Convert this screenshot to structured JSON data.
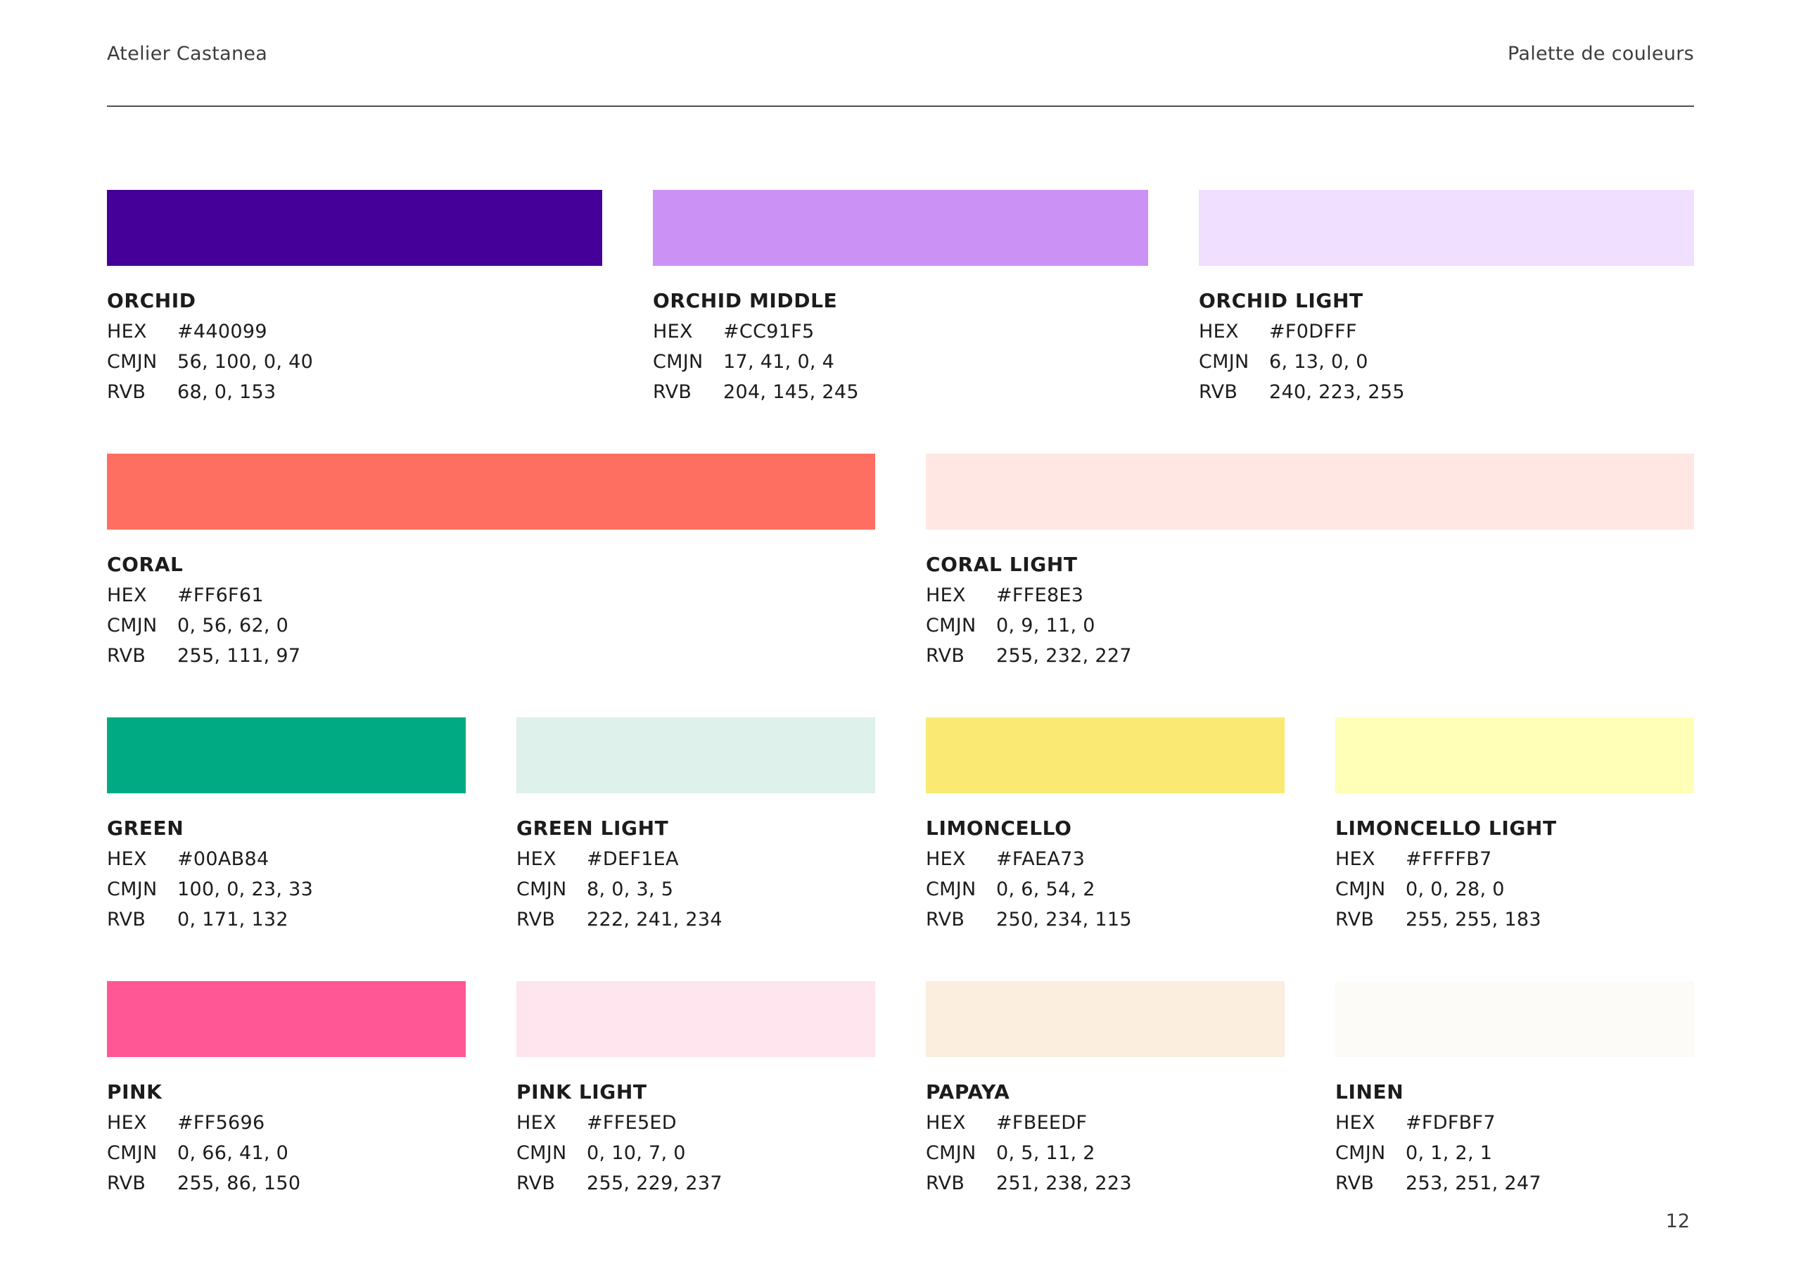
{
  "header": {
    "brand": "Atelier Castanea",
    "title": "Palette de couleurs"
  },
  "labels": {
    "hex": "HEX",
    "cmjn": "CMJN",
    "rvb": "RVB"
  },
  "rows": [
    {
      "swatches": [
        {
          "name": "ORCHID",
          "hex": "#440099",
          "cmjn": "56, 100, 0, 40",
          "rvb": "68, 0, 153"
        },
        {
          "name": "ORCHID MIDDLE",
          "hex": "#CC91F5",
          "cmjn": "17, 41, 0, 4",
          "rvb": "204, 145, 245"
        },
        {
          "name": "ORCHID LIGHT",
          "hex": "#F0DFFF",
          "cmjn": "6, 13, 0, 0",
          "rvb": "240, 223, 255"
        }
      ]
    },
    {
      "swatches": [
        {
          "name": "CORAL",
          "hex": "#FF6F61",
          "cmjn": "0, 56, 62, 0",
          "rvb": "255, 111, 97"
        },
        {
          "name": "CORAL LIGHT",
          "hex": "#FFE8E3",
          "cmjn": "0, 9, 11, 0",
          "rvb": "255, 232, 227"
        }
      ]
    },
    {
      "swatches": [
        {
          "name": "GREEN",
          "hex": "#00AB84",
          "cmjn": "100, 0, 23, 33",
          "rvb": "0, 171, 132"
        },
        {
          "name": "GREEN LIGHT",
          "hex": "#DEF1EA",
          "cmjn": "8, 0, 3, 5",
          "rvb": "222, 241, 234"
        },
        {
          "name": "LIMONCELLO",
          "hex": "#FAEA73",
          "cmjn": "0, 6, 54, 2",
          "rvb": "250, 234, 115"
        },
        {
          "name": "LIMONCELLO LIGHT",
          "hex": "#FFFFB7",
          "cmjn": "0, 0, 28, 0",
          "rvb": "255, 255, 183"
        }
      ]
    },
    {
      "swatches": [
        {
          "name": "PINK",
          "hex": "#FF5696",
          "cmjn": "0, 66, 41, 0",
          "rvb": "255, 86, 150"
        },
        {
          "name": "PINK LIGHT",
          "hex": "#FFE5ED",
          "cmjn": "0, 10, 7, 0",
          "rvb": "255, 229, 237"
        },
        {
          "name": "PAPAYA",
          "hex": "#FBEEDF",
          "cmjn": "0, 5, 11, 2",
          "rvb": "251, 238, 223"
        },
        {
          "name": "LINEN",
          "hex": "#FDFBF7",
          "cmjn": "0, 1, 2, 1",
          "rvb": "253, 251, 247"
        }
      ]
    }
  ],
  "page_number": "12"
}
